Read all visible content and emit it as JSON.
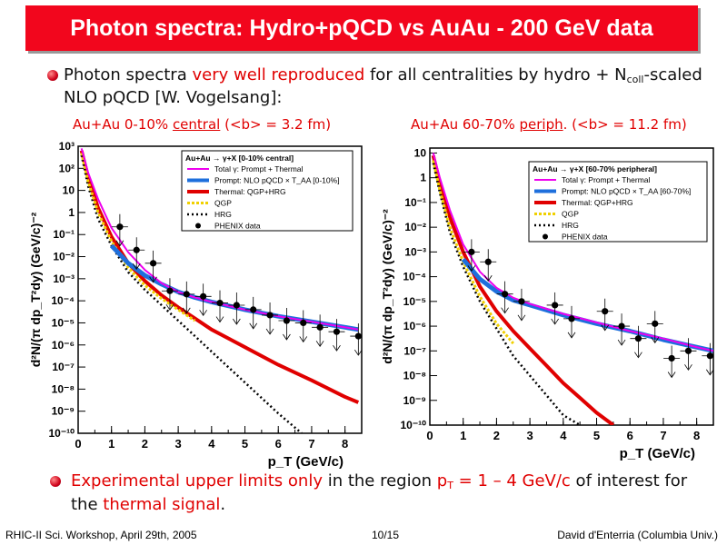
{
  "title": "Photon spectra: Hydro+pQCD vs AuAu - 200 GeV data",
  "bullet1": {
    "part1": "Photon spectra ",
    "part2": "very well reproduced",
    "part3": " for all centralities by hydro + N",
    "part4": "coll",
    "part5": "-scaled",
    "line2": "NLO pQCD [W. Vogelsang]:"
  },
  "caption_left": {
    "a": "Au+Au 0-10% ",
    "b": "central",
    "c": " (<b> = 3.2 fm)"
  },
  "caption_right": {
    "a": "Au+Au 60-70% ",
    "b": "periph",
    "c": ". (<b> = 11.2 fm)"
  },
  "bullet2": {
    "part1": "Experimental upper limits only",
    "part2": " in the region ",
    "part3": "p",
    "part4": "T",
    "part5": " = 1 – 4 GeV/c",
    "part6": " of interest for",
    "line2a": "the ",
    "line2b": "thermal signal",
    "line2c": "."
  },
  "footer": {
    "left": "RHIC-II Sci. Workshop, April 29th, 2005",
    "center": "10/15",
    "right": "David d'Enterria (Columbia Univ.)"
  },
  "colors": {
    "title_bg": "#f2061d",
    "total": "#ee00ee",
    "prompt": "#1e6fdc",
    "thermal": "#e00000",
    "qgp": "#f0d000",
    "hrg": "#000000",
    "data": "#000000"
  },
  "chart_data": [
    {
      "type": "line",
      "title": "",
      "xlabel": "p_T (GeV/c)",
      "ylabel": "d²N/(π dp_T²dy) (GeV/c)⁻²",
      "xlim": [
        0,
        8.5
      ],
      "ylim_log10": [
        -10,
        3
      ],
      "scale_y": "log",
      "x_ticks": [
        "0",
        "1",
        "2",
        "3",
        "4",
        "5",
        "6",
        "7",
        "8"
      ],
      "y_ticks": [
        "10⁻¹⁰",
        "10⁻⁹",
        "10⁻⁸",
        "10⁻⁷",
        "10⁻⁶",
        "10⁻⁵",
        "10⁻⁴",
        "10⁻³",
        "10⁻²",
        "10⁻¹",
        "1",
        "10",
        "10²",
        "10³"
      ],
      "legend": {
        "placement": "top-right",
        "header": "Au+Au → γ+X   [0-10% central]",
        "entries": [
          "Total γ: Prompt + Thermal",
          "Prompt: NLO pQCD × T_AA [0-10%]",
          "Thermal: QGP+HRG",
          "QGP",
          "HRG",
          "PHENIX data"
        ]
      },
      "series": [
        {
          "name": "Total γ: Prompt + Thermal",
          "x": [
            0.1,
            0.3,
            0.6,
            1.0,
            1.5,
            2.0,
            2.5,
            3.0,
            3.5,
            4.0,
            5.0,
            6.0,
            7.0,
            8.0,
            8.4
          ],
          "log10y": [
            2.9,
            1.8,
            0.6,
            -0.7,
            -1.8,
            -2.6,
            -3.2,
            -3.6,
            -3.85,
            -4.05,
            -4.4,
            -4.7,
            -4.95,
            -5.2,
            -5.3
          ]
        },
        {
          "name": "Prompt: NLO pQCD × T_AA [0-10%]",
          "x": [
            1.0,
            1.5,
            2.0,
            2.5,
            3.0,
            3.5,
            4.0,
            5.0,
            6.0,
            7.0,
            8.0,
            8.4
          ],
          "log10y": [
            -1.5,
            -2.3,
            -2.85,
            -3.25,
            -3.6,
            -3.85,
            -4.05,
            -4.4,
            -4.7,
            -4.95,
            -5.2,
            -5.3
          ]
        },
        {
          "name": "Thermal: QGP+HRG",
          "x": [
            0.1,
            0.3,
            0.6,
            1.0,
            1.5,
            2.0,
            2.5,
            3.0,
            3.5,
            4.0,
            5.0,
            6.0,
            7.0,
            8.0,
            8.4
          ],
          "log10y": [
            2.8,
            1.6,
            0.2,
            -1.1,
            -2.3,
            -3.1,
            -3.75,
            -4.3,
            -4.8,
            -5.3,
            -6.1,
            -6.9,
            -7.6,
            -8.35,
            -8.6
          ]
        },
        {
          "name": "QGP",
          "x": [
            0.1,
            0.3,
            0.6,
            1.0,
            1.5,
            2.0,
            2.5,
            3.0,
            3.5
          ],
          "log10y": [
            2.7,
            1.4,
            0.0,
            -1.3,
            -2.5,
            -3.3,
            -3.9,
            -4.4,
            -4.9
          ]
        },
        {
          "name": "HRG",
          "x": [
            0.1,
            0.3,
            0.6,
            1.0,
            1.5,
            2.0,
            2.5,
            3.0,
            3.5,
            4.0,
            5.0,
            6.0,
            6.7
          ],
          "log10y": [
            2.6,
            1.2,
            -0.3,
            -1.5,
            -2.7,
            -3.5,
            -4.2,
            -4.9,
            -5.6,
            -6.3,
            -7.7,
            -9.1,
            -10.0
          ]
        },
        {
          "name": "PHENIX data",
          "x": [
            1.25,
            1.75,
            2.25,
            2.75,
            3.25,
            3.75,
            4.25,
            4.75,
            5.25,
            5.75,
            6.25,
            6.75,
            7.25,
            7.75,
            8.4
          ],
          "log10y": [
            -0.65,
            -1.7,
            -2.3,
            -3.55,
            -3.7,
            -3.8,
            -4.1,
            -4.2,
            -4.4,
            -4.65,
            -4.9,
            -5.0,
            -5.2,
            -5.4,
            -5.6
          ]
        }
      ]
    },
    {
      "type": "line",
      "title": "",
      "xlabel": "p_T (GeV/c)",
      "ylabel": "d²N/(π dp_T²dy) (GeV/c)⁻²",
      "xlim": [
        0,
        8.5
      ],
      "ylim_log10": [
        -10,
        1.2
      ],
      "scale_y": "log",
      "x_ticks": [
        "0",
        "1",
        "2",
        "3",
        "4",
        "5",
        "6",
        "7",
        "8"
      ],
      "y_ticks": [
        "10⁻¹⁰",
        "10⁻⁹",
        "10⁻⁸",
        "10⁻⁷",
        "10⁻⁶",
        "10⁻⁵",
        "10⁻⁴",
        "10⁻³",
        "10⁻²",
        "10⁻¹",
        "1",
        "10"
      ],
      "legend": {
        "placement": "top-right",
        "header": "Au+Au → γ+X   [60-70% peripheral]",
        "entries": [
          "Total γ: Prompt + Thermal",
          "Prompt: NLO pQCD × T_AA [60-70%]",
          "Thermal: QGP+HRG",
          "QGP",
          "HRG",
          "PHENIX data"
        ]
      },
      "series": [
        {
          "name": "Total γ: Prompt + Thermal",
          "x": [
            0.1,
            0.3,
            0.6,
            1.0,
            1.5,
            2.0,
            2.5,
            3.0,
            3.5,
            4.0,
            5.0,
            6.0,
            7.0,
            8.0,
            8.5
          ],
          "log10y": [
            1.0,
            0.0,
            -1.3,
            -2.7,
            -3.8,
            -4.45,
            -4.85,
            -5.1,
            -5.3,
            -5.5,
            -5.85,
            -6.2,
            -6.5,
            -6.85,
            -7.0
          ]
        },
        {
          "name": "Prompt: NLO pQCD × T_AA [60-70%]",
          "x": [
            1.0,
            1.5,
            2.0,
            2.5,
            3.0,
            3.5,
            4.0,
            5.0,
            6.0,
            7.0,
            8.0,
            8.5
          ],
          "log10y": [
            -3.3,
            -4.1,
            -4.6,
            -4.95,
            -5.15,
            -5.35,
            -5.55,
            -5.9,
            -6.2,
            -6.55,
            -6.85,
            -7.0
          ]
        },
        {
          "name": "Thermal: QGP+HRG",
          "x": [
            0.1,
            0.3,
            0.6,
            1.0,
            1.5,
            2.0,
            2.5,
            3.0,
            3.5,
            4.0,
            4.5,
            5.0,
            5.5
          ],
          "log10y": [
            0.9,
            -0.2,
            -1.6,
            -3.0,
            -4.4,
            -5.4,
            -6.2,
            -6.9,
            -7.6,
            -8.3,
            -8.9,
            -9.5,
            -10.0
          ]
        },
        {
          "name": "QGP",
          "x": [
            0.1,
            0.3,
            0.6,
            1.0,
            1.5,
            2.0,
            2.5
          ],
          "log10y": [
            0.7,
            -0.5,
            -2.0,
            -3.4,
            -4.8,
            -5.9,
            -6.7
          ]
        },
        {
          "name": "HRG",
          "x": [
            0.1,
            0.3,
            0.6,
            1.0,
            1.5,
            2.0,
            2.5,
            3.0,
            3.5,
            4.0,
            4.5
          ],
          "log10y": [
            0.6,
            -0.6,
            -2.2,
            -3.6,
            -5.0,
            -6.1,
            -7.2,
            -8.0,
            -8.8,
            -9.6,
            -10.0
          ]
        },
        {
          "name": "PHENIX data",
          "x": [
            1.25,
            1.75,
            2.25,
            2.75,
            3.75,
            4.25,
            5.25,
            5.75,
            6.25,
            6.75,
            7.25,
            7.75,
            8.4
          ],
          "log10y": [
            -3.0,
            -3.4,
            -4.7,
            -5.0,
            -5.15,
            -5.7,
            -5.4,
            -6.0,
            -6.5,
            -5.9,
            -7.3,
            -7.0,
            -7.2
          ]
        }
      ]
    }
  ]
}
